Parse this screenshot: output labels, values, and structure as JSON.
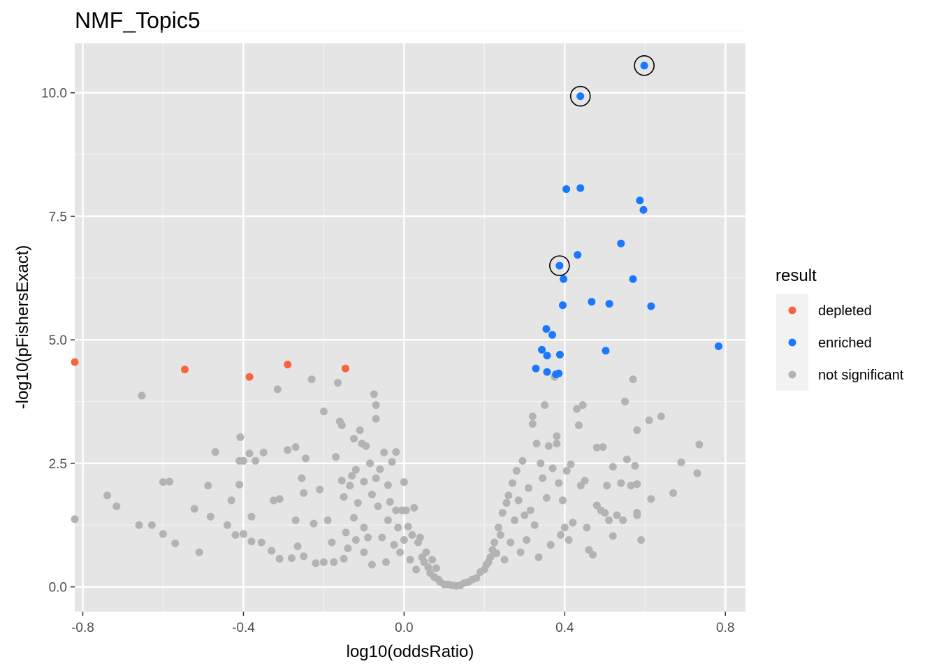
{
  "chart_data": {
    "type": "scatter",
    "title": "NMF_Topic5",
    "xlabel": "log10(oddsRatio)",
    "ylabel": "-log10(pFishersExact)",
    "xlim": [
      -0.82,
      0.85
    ],
    "ylim": [
      -0.5,
      11.0
    ],
    "x_ticks": [
      -0.8,
      -0.4,
      0.0,
      0.4,
      0.8
    ],
    "x_tick_labels": [
      "-0.8",
      "-0.4",
      "0.0",
      "0.4",
      "0.8"
    ],
    "y_ticks": [
      0.0,
      2.5,
      5.0,
      7.5,
      10.0
    ],
    "y_tick_labels": [
      "0.0",
      "2.5",
      "5.0",
      "7.5",
      "10.0"
    ],
    "grid": true,
    "background": "#e5e5e5",
    "legend": {
      "title": "result",
      "position": "right",
      "entries": [
        {
          "label": "depleted",
          "color": "#f8643c"
        },
        {
          "label": "enriched",
          "color": "#1a78ff"
        },
        {
          "label": "not significant",
          "color": "#b3b3b3"
        }
      ]
    },
    "series": [
      {
        "name": "depleted",
        "color": "#f8643c",
        "points": [
          [
            -0.82,
            4.55
          ],
          [
            -0.546,
            4.4
          ],
          [
            -0.385,
            4.25
          ],
          [
            -0.29,
            4.5
          ],
          [
            -0.146,
            4.42
          ]
        ]
      },
      {
        "name": "enriched",
        "color": "#1a78ff",
        "points": [
          [
            0.598,
            10.55
          ],
          [
            0.439,
            9.93
          ],
          [
            0.404,
            8.05
          ],
          [
            0.439,
            8.07
          ],
          [
            0.587,
            7.82
          ],
          [
            0.596,
            7.63
          ],
          [
            0.54,
            6.95
          ],
          [
            0.432,
            6.72
          ],
          [
            0.387,
            6.5
          ],
          [
            0.397,
            6.23
          ],
          [
            0.57,
            6.23
          ],
          [
            0.395,
            5.7
          ],
          [
            0.467,
            5.77
          ],
          [
            0.511,
            5.73
          ],
          [
            0.615,
            5.68
          ],
          [
            0.354,
            5.22
          ],
          [
            0.369,
            5.1
          ],
          [
            0.783,
            4.87
          ],
          [
            0.343,
            4.8
          ],
          [
            0.502,
            4.78
          ],
          [
            0.356,
            4.68
          ],
          [
            0.388,
            4.7
          ],
          [
            0.328,
            4.42
          ],
          [
            0.356,
            4.35
          ],
          [
            0.378,
            4.3
          ],
          [
            0.385,
            4.32
          ]
        ],
        "highlighted": [
          [
            0.598,
            10.55
          ],
          [
            0.439,
            9.93
          ],
          [
            0.387,
            6.5
          ]
        ]
      },
      {
        "name": "not significant",
        "color": "#b3b3b3",
        "points": [
          [
            -0.82,
            1.37
          ],
          [
            -0.739,
            1.85
          ],
          [
            -0.716,
            1.63
          ],
          [
            -0.653,
            3.87
          ],
          [
            -0.66,
            1.25
          ],
          [
            -0.628,
            1.25
          ],
          [
            -0.6,
            2.12
          ],
          [
            -0.584,
            2.13
          ],
          [
            -0.6,
            1.07
          ],
          [
            -0.57,
            0.88
          ],
          [
            -0.522,
            1.58
          ],
          [
            -0.51,
            0.7
          ],
          [
            -0.488,
            2.05
          ],
          [
            -0.482,
            1.42
          ],
          [
            -0.47,
            2.73
          ],
          [
            -0.44,
            1.25
          ],
          [
            -0.43,
            1.75
          ],
          [
            -0.42,
            1.05
          ],
          [
            -0.408,
            3.03
          ],
          [
            -0.41,
            2.55
          ],
          [
            -0.41,
            2.07
          ],
          [
            -0.4,
            2.55
          ],
          [
            -0.4,
            1.07
          ],
          [
            -0.385,
            2.7
          ],
          [
            -0.38,
            0.92
          ],
          [
            -0.38,
            1.42
          ],
          [
            -0.37,
            2.55
          ],
          [
            -0.355,
            0.9
          ],
          [
            -0.35,
            2.72
          ],
          [
            -0.325,
            1.75
          ],
          [
            -0.33,
            0.73
          ],
          [
            -0.315,
            4.0
          ],
          [
            -0.31,
            0.57
          ],
          [
            -0.31,
            1.78
          ],
          [
            -0.29,
            2.77
          ],
          [
            -0.28,
            0.58
          ],
          [
            -0.27,
            2.83
          ],
          [
            -0.27,
            1.35
          ],
          [
            -0.265,
            0.82
          ],
          [
            -0.255,
            2.2
          ],
          [
            -0.25,
            1.9
          ],
          [
            -0.25,
            0.62
          ],
          [
            -0.245,
            2.6
          ],
          [
            -0.23,
            4.2
          ],
          [
            -0.225,
            1.28
          ],
          [
            -0.22,
            0.48
          ],
          [
            -0.21,
            1.97
          ],
          [
            -0.2,
            3.55
          ],
          [
            -0.2,
            0.5
          ],
          [
            -0.19,
            1.35
          ],
          [
            -0.18,
            0.9
          ],
          [
            -0.175,
            0.5
          ],
          [
            -0.17,
            2.63
          ],
          [
            -0.165,
            4.13
          ],
          [
            -0.16,
            3.35
          ],
          [
            -0.155,
            3.27
          ],
          [
            -0.155,
            2.15
          ],
          [
            -0.15,
            1.82
          ],
          [
            -0.15,
            0.57
          ],
          [
            -0.145,
            1.1
          ],
          [
            -0.14,
            0.78
          ],
          [
            -0.135,
            2.05
          ],
          [
            -0.13,
            2.25
          ],
          [
            -0.125,
            3.0
          ],
          [
            -0.125,
            1.4
          ],
          [
            -0.12,
            2.37
          ],
          [
            -0.12,
            0.95
          ],
          [
            -0.115,
            1.7
          ],
          [
            -0.11,
            3.17
          ],
          [
            -0.105,
            2.9
          ],
          [
            -0.1,
            2.13
          ],
          [
            -0.1,
            0.7
          ],
          [
            -0.1,
            1.2
          ],
          [
            -0.095,
            2.85
          ],
          [
            -0.09,
            1.0
          ],
          [
            -0.085,
            2.5
          ],
          [
            -0.08,
            1.87
          ],
          [
            -0.08,
            0.45
          ],
          [
            -0.075,
            3.9
          ],
          [
            -0.07,
            3.68
          ],
          [
            -0.07,
            3.4
          ],
          [
            -0.07,
            2.2
          ],
          [
            -0.065,
            1.63
          ],
          [
            -0.06,
            2.38
          ],
          [
            -0.055,
            1.0
          ],
          [
            -0.05,
            2.72
          ],
          [
            -0.045,
            0.5
          ],
          [
            -0.04,
            2.06
          ],
          [
            -0.04,
            1.35
          ],
          [
            -0.035,
            1.72
          ],
          [
            -0.03,
            2.53
          ],
          [
            -0.025,
            0.85
          ],
          [
            -0.02,
            1.55
          ],
          [
            -0.02,
            2.73
          ],
          [
            -0.015,
            1.2
          ],
          [
            -0.01,
            0.7
          ],
          [
            -0.005,
            1.55
          ],
          [
            0.0,
            2.12
          ],
          [
            0.0,
            0.95
          ],
          [
            0.005,
            1.55
          ],
          [
            0.01,
            1.22
          ],
          [
            0.015,
            0.55
          ],
          [
            0.02,
            1.05
          ],
          [
            0.025,
            1.6
          ],
          [
            0.03,
            0.35
          ],
          [
            0.035,
            0.9
          ],
          [
            0.04,
            1.0
          ],
          [
            0.045,
            0.6
          ],
          [
            0.05,
            0.5
          ],
          [
            0.055,
            0.7
          ],
          [
            0.06,
            0.4
          ],
          [
            0.065,
            0.28
          ],
          [
            0.07,
            0.55
          ],
          [
            0.075,
            0.2
          ],
          [
            0.08,
            0.38
          ],
          [
            0.085,
            0.15
          ],
          [
            0.09,
            0.1
          ],
          [
            0.1,
            0.05
          ],
          [
            0.11,
            0.05
          ],
          [
            0.12,
            0.03
          ],
          [
            0.13,
            0.02
          ],
          [
            0.14,
            0.03
          ],
          [
            0.15,
            0.08
          ],
          [
            0.16,
            0.1
          ],
          [
            0.17,
            0.15
          ],
          [
            0.18,
            0.18
          ],
          [
            0.19,
            0.3
          ],
          [
            0.2,
            0.35
          ],
          [
            0.205,
            0.45
          ],
          [
            0.21,
            0.5
          ],
          [
            0.215,
            0.6
          ],
          [
            0.22,
            0.75
          ],
          [
            0.225,
            0.9
          ],
          [
            0.23,
            0.68
          ],
          [
            0.235,
            1.2
          ],
          [
            0.24,
            1.05
          ],
          [
            0.245,
            1.5
          ],
          [
            0.25,
            0.55
          ],
          [
            0.255,
            1.7
          ],
          [
            0.26,
            1.85
          ],
          [
            0.265,
            0.9
          ],
          [
            0.27,
            2.1
          ],
          [
            0.275,
            1.35
          ],
          [
            0.28,
            2.35
          ],
          [
            0.285,
            1.75
          ],
          [
            0.29,
            0.7
          ],
          [
            0.295,
            2.55
          ],
          [
            0.3,
            1.45
          ],
          [
            0.305,
            0.95
          ],
          [
            0.31,
            2.0
          ],
          [
            0.315,
            1.55
          ],
          [
            0.32,
            3.45
          ],
          [
            0.32,
            3.3
          ],
          [
            0.325,
            1.25
          ],
          [
            0.33,
            2.9
          ],
          [
            0.335,
            0.6
          ],
          [
            0.34,
            2.5
          ],
          [
            0.345,
            2.2
          ],
          [
            0.35,
            3.68
          ],
          [
            0.355,
            1.8
          ],
          [
            0.36,
            2.85
          ],
          [
            0.365,
            0.85
          ],
          [
            0.37,
            2.4
          ],
          [
            0.375,
            4.25
          ],
          [
            0.38,
            2.9
          ],
          [
            0.38,
            3.05
          ],
          [
            0.385,
            2.1
          ],
          [
            0.39,
            1.05
          ],
          [
            0.395,
            1.75
          ],
          [
            0.4,
            1.2
          ],
          [
            0.405,
            2.35
          ],
          [
            0.41,
            0.95
          ],
          [
            0.415,
            2.48
          ],
          [
            0.42,
            1.3
          ],
          [
            0.43,
            3.6
          ],
          [
            0.435,
            3.27
          ],
          [
            0.44,
            2.05
          ],
          [
            0.445,
            3.68
          ],
          [
            0.45,
            2.15
          ],
          [
            0.455,
            1.2
          ],
          [
            0.46,
            0.75
          ],
          [
            0.47,
            0.65
          ],
          [
            0.48,
            2.82
          ],
          [
            0.48,
            1.65
          ],
          [
            0.49,
            1.55
          ],
          [
            0.495,
            2.83
          ],
          [
            0.5,
            1.5
          ],
          [
            0.505,
            2.05
          ],
          [
            0.51,
            1.35
          ],
          [
            0.52,
            2.43
          ],
          [
            0.52,
            1.03
          ],
          [
            0.53,
            1.45
          ],
          [
            0.54,
            2.1
          ],
          [
            0.545,
            1.35
          ],
          [
            0.55,
            3.75
          ],
          [
            0.555,
            2.58
          ],
          [
            0.565,
            2.05
          ],
          [
            0.57,
            4.2
          ],
          [
            0.575,
            2.45
          ],
          [
            0.58,
            3.17
          ],
          [
            0.58,
            2.08
          ],
          [
            0.58,
            1.5
          ],
          [
            0.58,
            1.45
          ],
          [
            0.59,
            0.95
          ],
          [
            0.61,
            3.37
          ],
          [
            0.615,
            1.78
          ],
          [
            0.64,
            3.45
          ],
          [
            0.67,
            1.9
          ],
          [
            0.69,
            2.52
          ],
          [
            0.73,
            2.3
          ],
          [
            0.735,
            2.88
          ]
        ]
      }
    ]
  }
}
